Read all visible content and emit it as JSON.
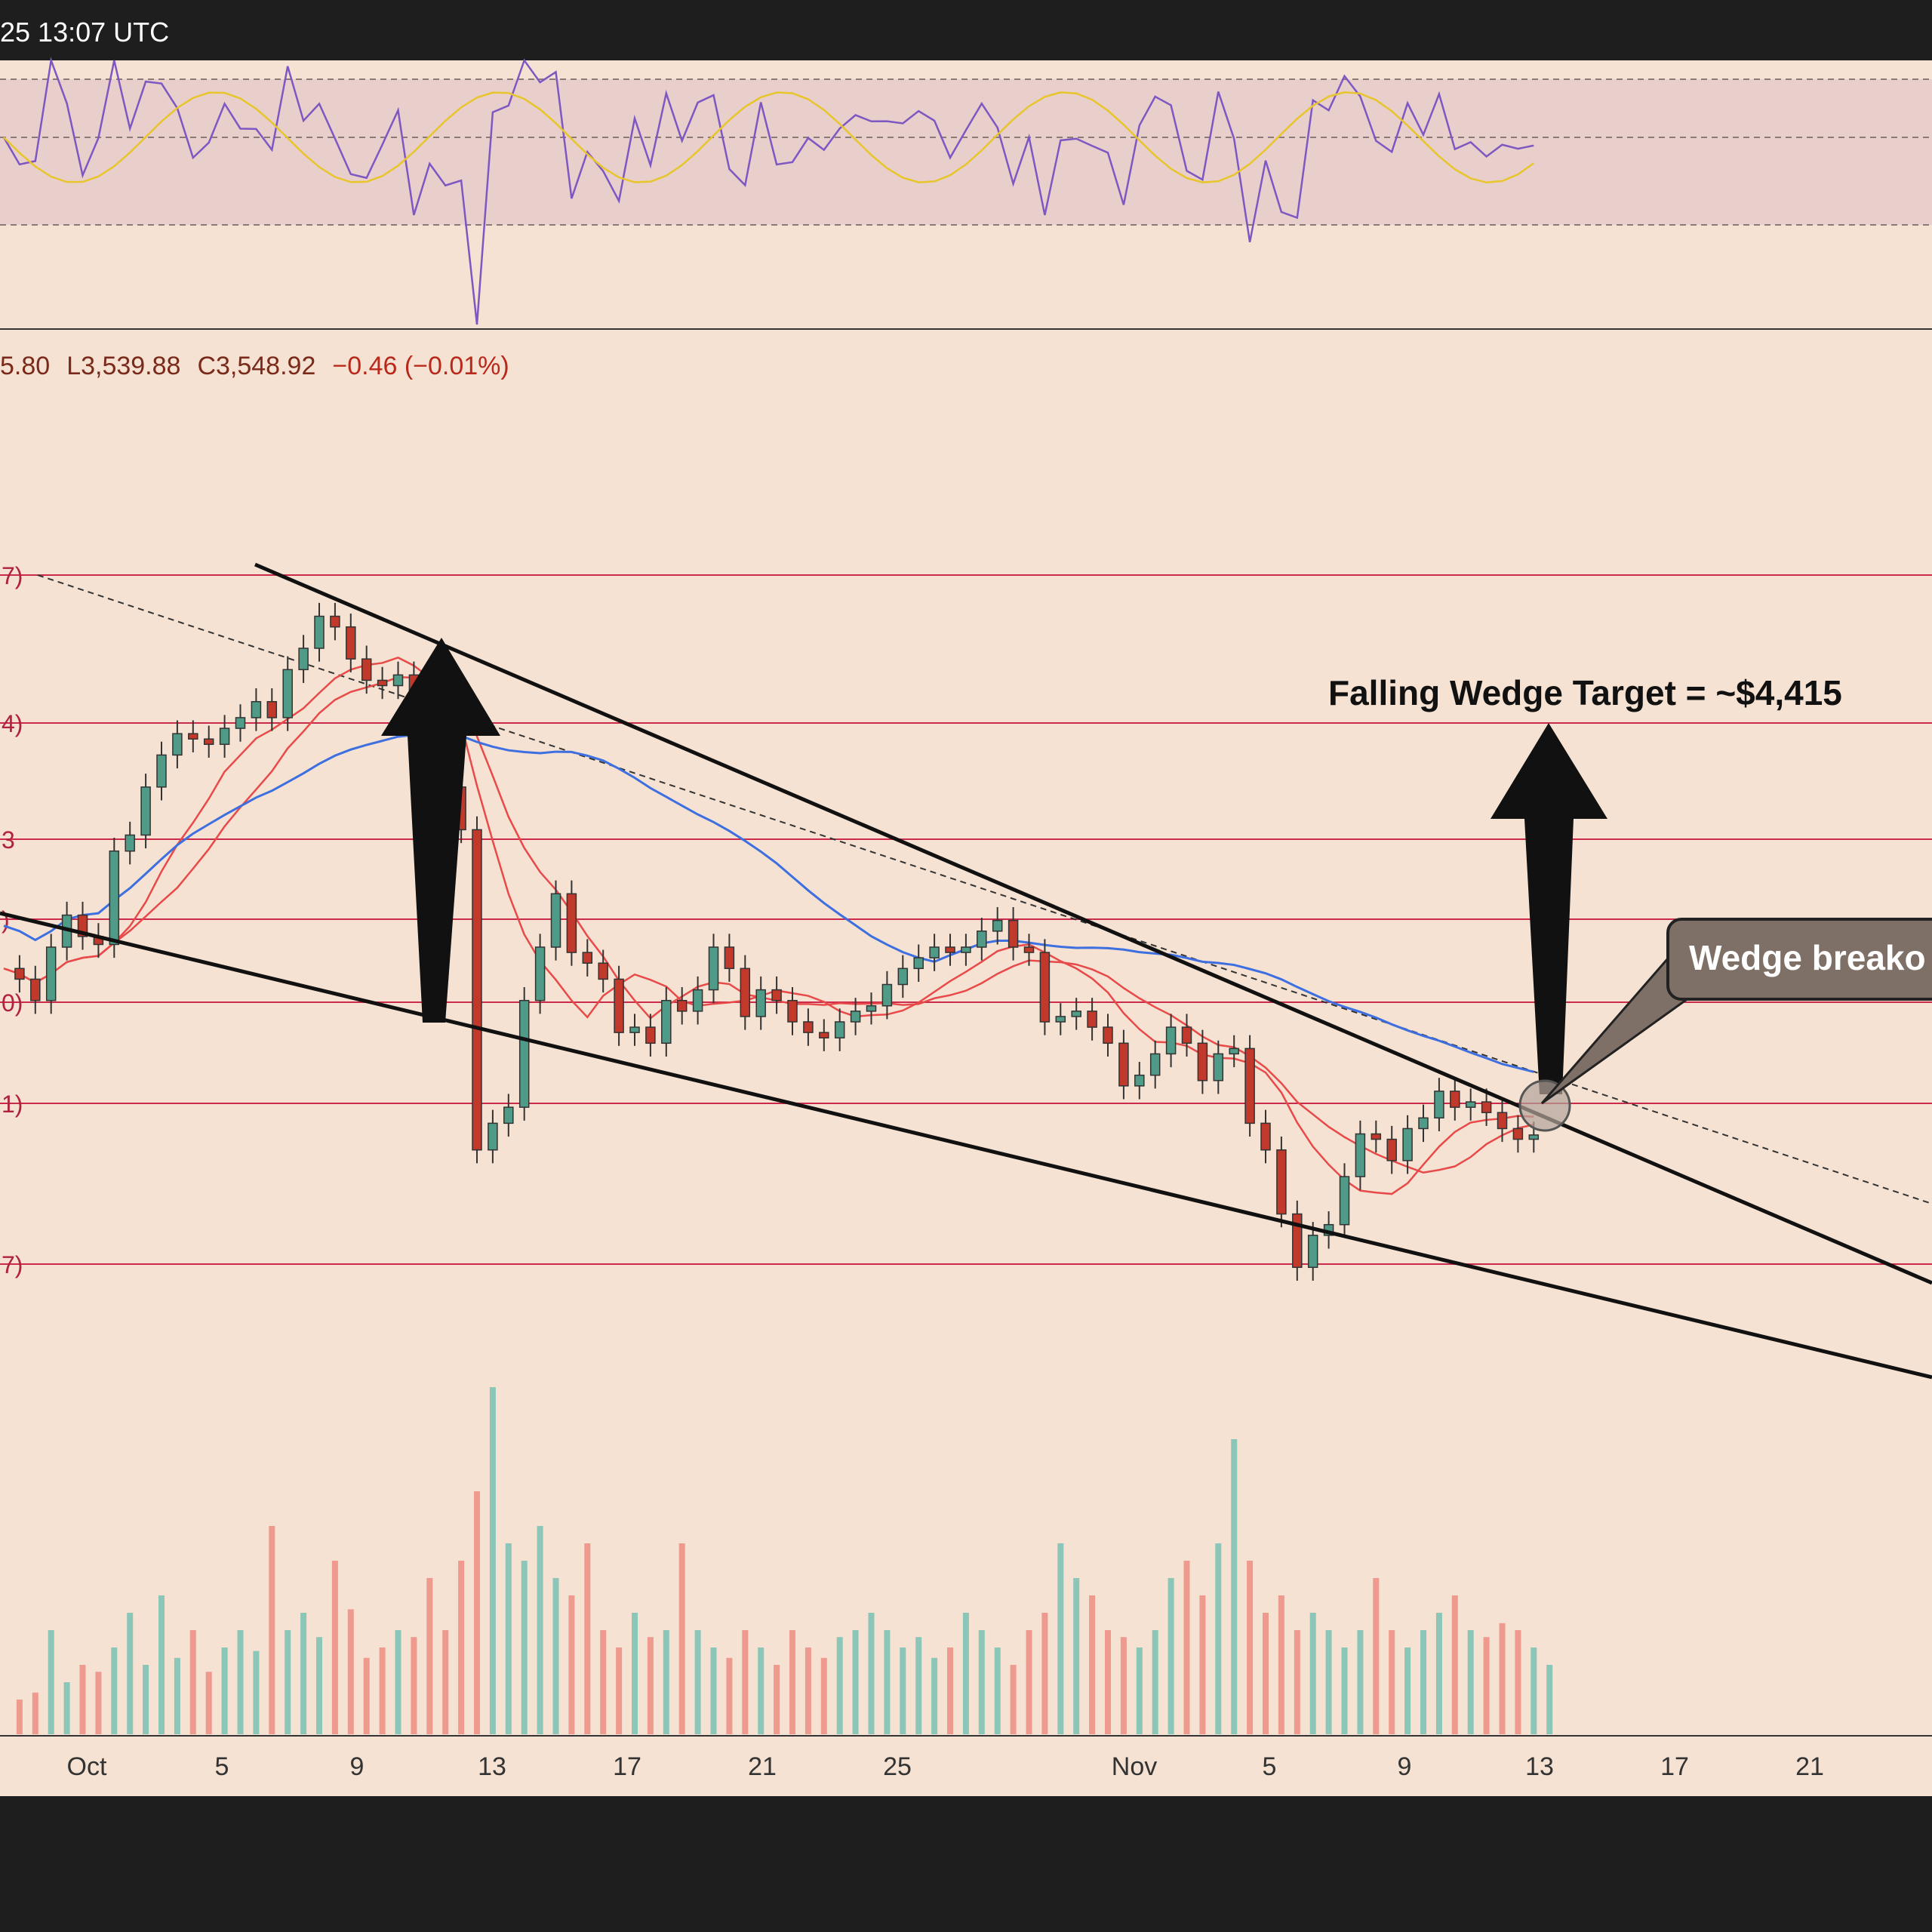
{
  "topbar": {
    "timestamp": "25 13:07 UTC"
  },
  "ohlc": {
    "high_partial": "5.80",
    "low": "L3,539.88",
    "close": "C3,548.92",
    "change": "−0.46 (−0.01%)"
  },
  "annotations": {
    "target_label": "Falling Wedge Target = ~$4,415",
    "breakout_label": "Wedge breako"
  },
  "level_labels": [
    "7)",
    "4)",
    "3",
    ")",
    "0)",
    "1)",
    "7)"
  ],
  "colors": {
    "background": "#f5e2d2",
    "frame": "#1f1e1e",
    "bull_candle": "#4f9b87",
    "bear_candle": "#c0392b",
    "bull_volume": "#8cc6b8",
    "bear_volume": "#ef9a8f",
    "rsi_line": "#7e57c2",
    "rsi_signal": "#e7c52b",
    "ema_fast": "#e84a4a",
    "ema_slow": "#e84a4a",
    "ema_long": "#3d6fe0",
    "level_lines": "#cc2a4a"
  },
  "chart_data": {
    "type": "candlestick",
    "title": "",
    "x_tick_labels": [
      "Oct",
      "5",
      "9",
      "13",
      "17",
      "21",
      "25",
      "Nov",
      "5",
      "9",
      "13",
      "17",
      "21"
    ],
    "price_series": [
      3860,
      3840,
      3800,
      3900,
      3960,
      3920,
      3905,
      4080,
      4110,
      4200,
      4260,
      4300,
      4290,
      4280,
      4310,
      4330,
      4360,
      4330,
      4420,
      4460,
      4520,
      4500,
      4440,
      4400,
      4390,
      4410,
      4300,
      4280,
      4200,
      4120,
      3520,
      3570,
      3600,
      3800,
      3900,
      4000,
      3890,
      3870,
      3840,
      3740,
      3750,
      3720,
      3800,
      3780,
      3820,
      3900,
      3860,
      3770,
      3820,
      3800,
      3760,
      3740,
      3730,
      3760,
      3780,
      3790,
      3830,
      3860,
      3880,
      3900,
      3890,
      3900,
      3930,
      3950,
      3900,
      3890,
      3760,
      3770,
      3780,
      3750,
      3720,
      3640,
      3660,
      3700,
      3750,
      3720,
      3650,
      3700,
      3710,
      3570,
      3520,
      3400,
      3300,
      3360,
      3380,
      3470,
      3550,
      3540,
      3500,
      3560,
      3580,
      3630,
      3600,
      3610,
      3590,
      3560,
      3540,
      3548
    ],
    "volume_relative": [
      0.1,
      0.12,
      0.3,
      0.15,
      0.2,
      0.18,
      0.25,
      0.35,
      0.2,
      0.4,
      0.22,
      0.3,
      0.18,
      0.25,
      0.3,
      0.24,
      0.6,
      0.3,
      0.35,
      0.28,
      0.5,
      0.36,
      0.22,
      0.25,
      0.3,
      0.28,
      0.45,
      0.3,
      0.5,
      0.7,
      1.0,
      0.55,
      0.5,
      0.6,
      0.45,
      0.4,
      0.55,
      0.3,
      0.25,
      0.35,
      0.28,
      0.3,
      0.55,
      0.3,
      0.25,
      0.22,
      0.3,
      0.25,
      0.2,
      0.3,
      0.25,
      0.22,
      0.28,
      0.3,
      0.35,
      0.3,
      0.25,
      0.28,
      0.22,
      0.25,
      0.35,
      0.3,
      0.25,
      0.2,
      0.3,
      0.35,
      0.55,
      0.45,
      0.4,
      0.3,
      0.28,
      0.25,
      0.3,
      0.45,
      0.5,
      0.4,
      0.55,
      0.85,
      0.5,
      0.35,
      0.4,
      0.3,
      0.35,
      0.3,
      0.25,
      0.3,
      0.45,
      0.3,
      0.25,
      0.3,
      0.35,
      0.4,
      0.3,
      0.28,
      0.32,
      0.3,
      0.25,
      0.2
    ],
    "horizontal_levels": [
      "7)",
      "4)",
      "3",
      ")",
      "0)",
      "1)",
      "7)"
    ],
    "target": "~$4,415",
    "grid": false,
    "legend": "none"
  }
}
